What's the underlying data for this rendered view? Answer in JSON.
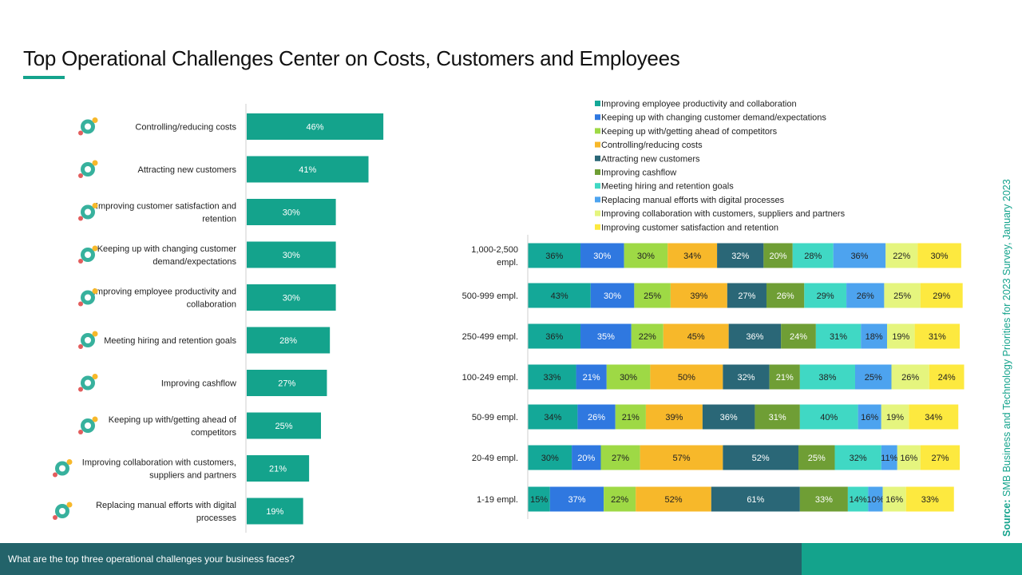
{
  "page": {
    "title": "Top Operational Challenges Center on Costs, Customers and Employees",
    "question": "What are the top three operational challenges your business faces?",
    "source_label": "Source:",
    "source_text": " SMB Business and Technology Priorities for 2023 Survey, January 2023"
  },
  "colors": {
    "accent": "#14a38c",
    "footer": "#23636a"
  },
  "chart_data": [
    {
      "type": "bar",
      "orientation": "horizontal",
      "categories": [
        "Controlling/reducing costs",
        "Attracting new customers",
        "Improving customer satisfaction and retention",
        "Keeping up with changing customer demand/expectations",
        "Improving employee productivity and collaboration",
        "Meeting hiring and retention goals",
        "Improving cashflow",
        "Keeping up with/getting ahead of competitors",
        "Improving collaboration with customers, suppliers and partners",
        "Replacing manual efforts with digital processes"
      ],
      "category_lines": [
        [
          "Controlling/reducing costs"
        ],
        [
          "Attracting new customers"
        ],
        [
          "Improving customer satisfaction and",
          "retention"
        ],
        [
          "Keeping up with changing customer",
          "demand/expectations"
        ],
        [
          "Improving employee productivity and",
          "collaboration"
        ],
        [
          "Meeting hiring and retention goals"
        ],
        [
          "Improving cashflow"
        ],
        [
          "Keeping up with/getting ahead of",
          "competitors"
        ],
        [
          "Improving collaboration with customers,",
          "suppliers and partners"
        ],
        [
          "Replacing manual efforts with digital",
          "processes"
        ]
      ],
      "icons": [
        "gear-coins-icon",
        "customers-stars-icon",
        "satisfaction-thumbs-up-icon",
        "demand-cycle-icon",
        "productivity-gears-icon",
        "hiring-people-icon",
        "cashflow-money-icon",
        "competitors-people-icon",
        "handshake-stars-icon",
        "digital-process-icon"
      ],
      "values": [
        46,
        41,
        30,
        30,
        30,
        28,
        27,
        25,
        21,
        19
      ],
      "value_labels": [
        "46%",
        "41%",
        "30%",
        "30%",
        "30%",
        "28%",
        "27%",
        "25%",
        "21%",
        "19%"
      ],
      "color": "#14a38c",
      "xlim": [
        0,
        100
      ]
    },
    {
      "type": "bar",
      "orientation": "horizontal",
      "stacked": true,
      "categories": [
        "1,000-2,500 empl.",
        "500-999 empl.",
        "250-499 empl.",
        "100-249 empl.",
        "50-99 empl.",
        "20-49 empl.",
        "1-19 empl."
      ],
      "category_lines": [
        [
          "1,000-2,500",
          "empl."
        ],
        [
          "500-999 empl."
        ],
        [
          "250-499 empl."
        ],
        [
          "100-249 empl."
        ],
        [
          "50-99 empl."
        ],
        [
          "20-49 empl."
        ],
        [
          "1-19 empl."
        ]
      ],
      "legend_position": "top",
      "series": [
        {
          "name": "Improving employee productivity and collaboration",
          "color": "#14a898",
          "values": [
            36,
            43,
            36,
            33,
            34,
            30,
            15
          ]
        },
        {
          "name": "Keeping up with changing customer demand/expectations",
          "color": "#2f78e0",
          "values": [
            30,
            30,
            35,
            21,
            26,
            20,
            37
          ]
        },
        {
          "name": "Keeping up with/getting ahead of competitors",
          "color": "#9ed945",
          "values": [
            30,
            25,
            22,
            30,
            21,
            27,
            22
          ]
        },
        {
          "name": "Controlling/reducing costs",
          "color": "#f7b82a",
          "values": [
            34,
            39,
            45,
            50,
            39,
            57,
            52
          ]
        },
        {
          "name": "Attracting new customers",
          "color": "#2a6777",
          "values": [
            32,
            27,
            36,
            32,
            36,
            52,
            61
          ]
        },
        {
          "name": "Improving cashflow",
          "color": "#6f9e35",
          "values": [
            20,
            26,
            24,
            21,
            31,
            25,
            33
          ]
        },
        {
          "name": "Meeting hiring and retention goals",
          "color": "#40d8c4",
          "values": [
            28,
            29,
            31,
            38,
            40,
            32,
            14
          ]
        },
        {
          "name": "Replacing manual efforts with digital processes",
          "color": "#4da3ef",
          "values": [
            36,
            26,
            18,
            25,
            16,
            11,
            10
          ]
        },
        {
          "name": "Improving collaboration with customers, suppliers and partners",
          "color": "#e5f57e",
          "values": [
            22,
            25,
            19,
            26,
            19,
            16,
            16
          ]
        },
        {
          "name": "Improving customer satisfaction and retention",
          "color": "#fde93f",
          "values": [
            30,
            29,
            31,
            24,
            34,
            27,
            33
          ]
        }
      ]
    }
  ]
}
